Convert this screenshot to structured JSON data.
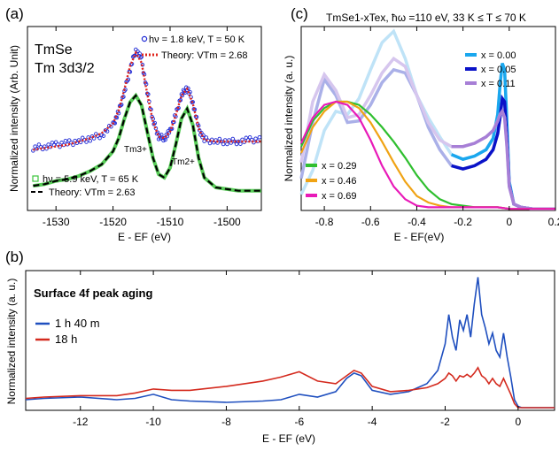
{
  "chart_data": [
    {
      "type": "line",
      "panel_label": "(a)",
      "title_lines": [
        "TmSe",
        "Tm 3d3/2"
      ],
      "xlabel": "E - EF (eV)",
      "ylabel": "Normalized intensity (Arb. Unit)",
      "xlim": [
        -1535,
        -1494
      ],
      "xticks": [
        -1530,
        -1520,
        -1510,
        -1500
      ],
      "tick_labels": [
        "-1530",
        "-1520",
        "-1510",
        "-1500"
      ],
      "annotations": [
        "Tm3+",
        "Tm2+"
      ],
      "series": [
        {
          "name": "hν = 1.8 keV, T = 50 K",
          "style": "open-circles",
          "color": "#1f2ad6",
          "x": [
            -1534,
            -1532,
            -1530,
            -1528,
            -1526,
            -1524,
            -1522,
            -1520,
            -1519,
            -1518,
            -1517,
            -1516,
            -1515,
            -1514,
            -1513,
            -1512,
            -1511,
            -1510,
            -1509,
            -1508,
            -1507,
            -1506,
            -1505,
            -1504,
            -1502,
            -1500,
            -1498,
            -1496,
            -1494
          ],
          "y": [
            0.38,
            0.39,
            0.4,
            0.41,
            0.42,
            0.44,
            0.46,
            0.52,
            0.6,
            0.72,
            0.86,
            0.98,
            0.92,
            0.72,
            0.55,
            0.45,
            0.44,
            0.48,
            0.58,
            0.7,
            0.75,
            0.66,
            0.5,
            0.43,
            0.42,
            0.42,
            0.42,
            0.43,
            0.43
          ]
        },
        {
          "name": "Theory: VTm = 2.68",
          "style": "dotted",
          "color": "#e0241c",
          "x": [
            -1534,
            -1532,
            -1530,
            -1528,
            -1526,
            -1524,
            -1522,
            -1520,
            -1519,
            -1518,
            -1517,
            -1516,
            -1515,
            -1514,
            -1513,
            -1512,
            -1511,
            -1510,
            -1509,
            -1508,
            -1507,
            -1506,
            -1505,
            -1504,
            -1502,
            -1500,
            -1498,
            -1496,
            -1494
          ],
          "y": [
            0.37,
            0.38,
            0.39,
            0.4,
            0.42,
            0.44,
            0.47,
            0.53,
            0.61,
            0.74,
            0.88,
            0.96,
            0.9,
            0.71,
            0.54,
            0.45,
            0.44,
            0.48,
            0.58,
            0.7,
            0.74,
            0.65,
            0.5,
            0.43,
            0.42,
            0.42,
            0.42,
            0.42,
            0.42
          ]
        },
        {
          "name": "hν = 5.9 keV, T = 65 K",
          "style": "open-squares",
          "color": "#3bc43b",
          "x": [
            -1534,
            -1532,
            -1530,
            -1528,
            -1526,
            -1524,
            -1522,
            -1520,
            -1519,
            -1518,
            -1517,
            -1516,
            -1515,
            -1514,
            -1513,
            -1512,
            -1511,
            -1510,
            -1509,
            -1508,
            -1507,
            -1506,
            -1505,
            -1504,
            -1502,
            -1500,
            -1498,
            -1496,
            -1494
          ],
          "y": [
            0.15,
            0.16,
            0.18,
            0.19,
            0.21,
            0.24,
            0.28,
            0.36,
            0.44,
            0.56,
            0.66,
            0.7,
            0.64,
            0.48,
            0.32,
            0.22,
            0.2,
            0.26,
            0.4,
            0.56,
            0.62,
            0.52,
            0.32,
            0.2,
            0.14,
            0.13,
            0.12,
            0.12,
            0.12
          ]
        },
        {
          "name": "Theory: VTm = 2.63",
          "style": "dashed",
          "color": "#000000",
          "x": [
            -1534,
            -1532,
            -1530,
            -1528,
            -1526,
            -1524,
            -1522,
            -1520,
            -1519,
            -1518,
            -1517,
            -1516,
            -1515,
            -1514,
            -1513,
            -1512,
            -1511,
            -1510,
            -1509,
            -1508,
            -1507,
            -1506,
            -1505,
            -1504,
            -1502,
            -1500,
            -1498,
            -1496,
            -1494
          ],
          "y": [
            0.15,
            0.16,
            0.18,
            0.19,
            0.21,
            0.24,
            0.28,
            0.36,
            0.44,
            0.56,
            0.66,
            0.7,
            0.64,
            0.48,
            0.32,
            0.22,
            0.2,
            0.26,
            0.4,
            0.56,
            0.62,
            0.52,
            0.32,
            0.2,
            0.14,
            0.13,
            0.12,
            0.12,
            0.12
          ]
        }
      ]
    },
    {
      "type": "line",
      "panel_label": "(c)",
      "title": "TmSe1-xTex, ħω =110 eV,  33 K ≤ T ≤ 70 K",
      "xlabel": "E - EF(eV)",
      "ylabel": "Normalized intensity (a. u.)",
      "xlim": [
        -0.9,
        0.2
      ],
      "xticks": [
        -0.8,
        -0.6,
        -0.4,
        -0.2,
        0,
        0.2
      ],
      "tick_labels": [
        "-0.8",
        "-0.6",
        "-0.4",
        "-0.2",
        "0",
        "0.2"
      ],
      "series": [
        {
          "name": "x = 0.00",
          "color": "#1aa7ee",
          "faded_color": "#bfe3f7",
          "x": [
            -0.9,
            -0.85,
            -0.8,
            -0.75,
            -0.7,
            -0.65,
            -0.6,
            -0.55,
            -0.5,
            -0.45,
            -0.4,
            -0.35,
            -0.3,
            -0.25,
            -0.2,
            -0.15,
            -0.1,
            -0.07,
            -0.05,
            -0.04,
            -0.03,
            -0.02,
            -0.01,
            0,
            0.02,
            0.05,
            0.1,
            0.2
          ],
          "y": [
            0.1,
            0.25,
            0.5,
            0.62,
            0.6,
            0.7,
            0.88,
            1.05,
            1.12,
            0.95,
            0.72,
            0.58,
            0.46,
            0.35,
            0.32,
            0.34,
            0.38,
            0.45,
            0.6,
            0.78,
            0.92,
            0.88,
            0.55,
            0.18,
            0.04,
            0.02,
            0.01,
            0.01
          ]
        },
        {
          "name": "x = 0.05",
          "color": "#0a12c8",
          "faded_color": "#aab0e8",
          "x": [
            -0.9,
            -0.85,
            -0.8,
            -0.75,
            -0.7,
            -0.65,
            -0.6,
            -0.55,
            -0.5,
            -0.45,
            -0.4,
            -0.35,
            -0.3,
            -0.25,
            -0.2,
            -0.15,
            -0.1,
            -0.07,
            -0.05,
            -0.04,
            -0.03,
            -0.02,
            -0.01,
            0,
            0.02,
            0.05,
            0.1,
            0.2
          ],
          "y": [
            0.2,
            0.55,
            0.82,
            0.72,
            0.55,
            0.56,
            0.66,
            0.8,
            0.88,
            0.86,
            0.72,
            0.52,
            0.38,
            0.28,
            0.26,
            0.28,
            0.32,
            0.38,
            0.48,
            0.58,
            0.7,
            0.68,
            0.45,
            0.16,
            0.04,
            0.02,
            0.01,
            0.01
          ]
        },
        {
          "name": "x = 0.11",
          "color": "#a77fd6",
          "faded_color": "#d6c6ee",
          "x": [
            -0.9,
            -0.85,
            -0.8,
            -0.75,
            -0.7,
            -0.65,
            -0.6,
            -0.55,
            -0.5,
            -0.45,
            -0.4,
            -0.35,
            -0.3,
            -0.25,
            -0.2,
            -0.15,
            -0.1,
            -0.07,
            -0.05,
            -0.04,
            -0.03,
            -0.02,
            -0.01,
            0,
            0.02,
            0.05,
            0.1,
            0.2
          ],
          "y": [
            0.3,
            0.68,
            0.85,
            0.75,
            0.58,
            0.6,
            0.72,
            0.86,
            0.95,
            0.9,
            0.72,
            0.55,
            0.44,
            0.4,
            0.4,
            0.42,
            0.46,
            0.5,
            0.56,
            0.6,
            0.62,
            0.58,
            0.4,
            0.15,
            0.04,
            0.02,
            0.01,
            0.01
          ]
        },
        {
          "name": "x = 0.29",
          "color": "#2fbf2f",
          "x": [
            -0.9,
            -0.85,
            -0.8,
            -0.75,
            -0.7,
            -0.65,
            -0.6,
            -0.55,
            -0.5,
            -0.45,
            -0.4,
            -0.35,
            -0.3,
            -0.25,
            -0.2,
            -0.15,
            -0.1,
            -0.05,
            0,
            0.1,
            0.2
          ],
          "y": [
            0.4,
            0.56,
            0.64,
            0.68,
            0.68,
            0.66,
            0.6,
            0.52,
            0.43,
            0.33,
            0.22,
            0.13,
            0.07,
            0.04,
            0.03,
            0.02,
            0.02,
            0.02,
            0.01,
            0.01,
            0.01
          ]
        },
        {
          "name": "x = 0.46",
          "color": "#f0a314",
          "x": [
            -0.9,
            -0.85,
            -0.8,
            -0.75,
            -0.7,
            -0.65,
            -0.6,
            -0.55,
            -0.5,
            -0.45,
            -0.4,
            -0.35,
            -0.3,
            -0.25,
            -0.2,
            -0.15,
            -0.1,
            -0.05,
            0,
            0.1,
            0.2
          ],
          "y": [
            0.36,
            0.52,
            0.62,
            0.68,
            0.68,
            0.64,
            0.55,
            0.43,
            0.3,
            0.18,
            0.09,
            0.05,
            0.03,
            0.02,
            0.02,
            0.02,
            0.02,
            0.02,
            0.01,
            0.01,
            0.01
          ]
        },
        {
          "name": "x = 0.69",
          "color": "#e81ab8",
          "x": [
            -0.9,
            -0.85,
            -0.8,
            -0.75,
            -0.7,
            -0.65,
            -0.6,
            -0.55,
            -0.5,
            -0.45,
            -0.4,
            -0.35,
            -0.3,
            -0.25,
            -0.2,
            -0.15,
            -0.1,
            -0.05,
            0,
            0.1,
            0.2
          ],
          "y": [
            0.42,
            0.58,
            0.66,
            0.68,
            0.66,
            0.58,
            0.44,
            0.28,
            0.15,
            0.07,
            0.03,
            0.02,
            0.02,
            0.02,
            0.02,
            0.02,
            0.02,
            0.02,
            0.01,
            0.01,
            0.01
          ]
        }
      ]
    },
    {
      "type": "line",
      "panel_label": "(b)",
      "title": "Surface 4f peak aging",
      "xlabel": "E - EF (eV)",
      "ylabel": "Normalized intensity (a. u.)",
      "xlim": [
        -13.5,
        1
      ],
      "xticks": [
        -12,
        -10,
        -8,
        -6,
        -4,
        -2,
        0
      ],
      "tick_labels": [
        "-12",
        "-10",
        "-8",
        "-6",
        "-4",
        "-2",
        "0"
      ],
      "series": [
        {
          "name": "1 h 40 m",
          "color": "#1f4fbf",
          "x": [
            -13.5,
            -13,
            -12,
            -11,
            -10.5,
            -10,
            -9.5,
            -9,
            -8,
            -7,
            -6.5,
            -6,
            -5.5,
            -5,
            -4.7,
            -4.5,
            -4.3,
            -4,
            -3.5,
            -3,
            -2.5,
            -2.2,
            -2,
            -1.9,
            -1.8,
            -1.7,
            -1.6,
            -1.5,
            -1.4,
            -1.3,
            -1.2,
            -1.1,
            -1.0,
            -0.9,
            -0.8,
            -0.7,
            -0.6,
            -0.5,
            -0.4,
            -0.3,
            -0.2,
            -0.1,
            0,
            0.1,
            0.5,
            1
          ],
          "y": [
            0.08,
            0.09,
            0.1,
            0.08,
            0.09,
            0.12,
            0.08,
            0.07,
            0.06,
            0.07,
            0.08,
            0.12,
            0.1,
            0.14,
            0.24,
            0.28,
            0.26,
            0.15,
            0.12,
            0.14,
            0.2,
            0.3,
            0.5,
            0.72,
            0.55,
            0.45,
            0.68,
            0.6,
            0.72,
            0.55,
            0.8,
            1.0,
            0.72,
            0.62,
            0.5,
            0.58,
            0.45,
            0.4,
            0.58,
            0.4,
            0.25,
            0.08,
            0.03,
            0.02,
            0.02,
            0.02
          ]
        },
        {
          "name": "18 h",
          "color": "#d42a1e",
          "x": [
            -13.5,
            -13,
            -12,
            -11,
            -10.5,
            -10,
            -9.5,
            -9,
            -8,
            -7,
            -6.5,
            -6,
            -5.5,
            -5,
            -4.7,
            -4.5,
            -4.3,
            -4,
            -3.5,
            -3,
            -2.5,
            -2.2,
            -2,
            -1.9,
            -1.8,
            -1.7,
            -1.6,
            -1.5,
            -1.4,
            -1.3,
            -1.2,
            -1.1,
            -1.0,
            -0.9,
            -0.8,
            -0.7,
            -0.6,
            -0.5,
            -0.4,
            -0.3,
            -0.2,
            -0.1,
            0,
            0.1,
            0.5,
            1
          ],
          "y": [
            0.09,
            0.1,
            0.11,
            0.11,
            0.13,
            0.16,
            0.15,
            0.15,
            0.18,
            0.22,
            0.25,
            0.29,
            0.22,
            0.2,
            0.26,
            0.3,
            0.28,
            0.18,
            0.14,
            0.15,
            0.17,
            0.2,
            0.24,
            0.28,
            0.26,
            0.22,
            0.26,
            0.25,
            0.27,
            0.25,
            0.28,
            0.32,
            0.26,
            0.24,
            0.2,
            0.24,
            0.2,
            0.18,
            0.24,
            0.18,
            0.12,
            0.05,
            0.02,
            0.02,
            0.02,
            0.02
          ]
        }
      ]
    }
  ]
}
